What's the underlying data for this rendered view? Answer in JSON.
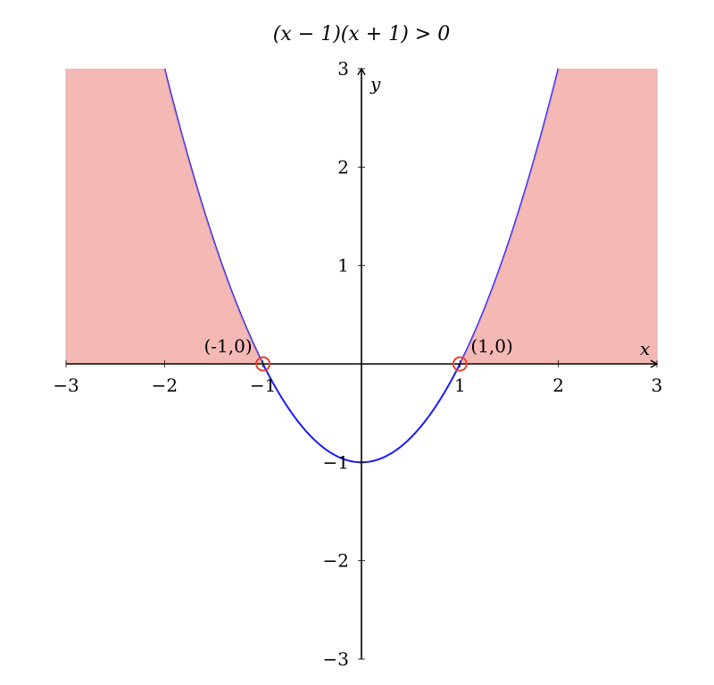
{
  "chart_data": {
    "type": "area",
    "title": "(x − 1)(x + 1) > 0",
    "xlabel": "x",
    "ylabel": "y",
    "xlim": [
      -3,
      3
    ],
    "ylim": [
      -3,
      3
    ],
    "xticks": [
      -3,
      -2,
      -1,
      1,
      2,
      3
    ],
    "yticks": [
      3,
      2,
      1,
      -1,
      -2,
      -3
    ],
    "xtick_labels": [
      "−3",
      "−2",
      "−1",
      "1",
      "2",
      "3"
    ],
    "ytick_labels": [
      "3",
      "2",
      "1",
      "−1",
      "−2",
      "−3"
    ],
    "grid": false,
    "curve": {
      "expression": "y = (x - 1)(x + 1)",
      "color": "#1a1aff"
    },
    "shaded_region": {
      "description_intervals": [
        [
          -3,
          -1
        ],
        [
          1,
          3
        ]
      ],
      "color": "#f0a09c"
    },
    "points": [
      {
        "x": -1,
        "y": 0,
        "label": "(-1,0)"
      },
      {
        "x": 1,
        "y": 0,
        "label": "(1,0)"
      }
    ],
    "point_color": "#e8402a"
  }
}
